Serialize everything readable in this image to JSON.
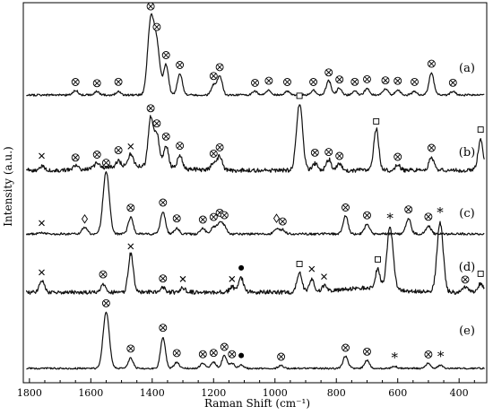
{
  "chart_data": {
    "type": "line",
    "title": "",
    "xlabel": "Raman Shift (cm⁻¹)",
    "ylabel": "Intensity (a.u.)",
    "xlim": [
      1820,
      310
    ],
    "x_reversed": true,
    "x_ticks": [
      1800,
      1600,
      1400,
      1200,
      1000,
      800,
      600,
      400
    ],
    "y_ticks_shown": false,
    "grid": false,
    "legend": "none",
    "series": [
      {
        "name": "(a)",
        "peaks": [
          [
            1650,
            4
          ],
          [
            1580,
            3
          ],
          [
            1510,
            3
          ],
          [
            1405,
            60
          ],
          [
            1385,
            40
          ],
          [
            1355,
            25
          ],
          [
            1310,
            18
          ],
          [
            1200,
            8
          ],
          [
            1180,
            16
          ],
          [
            1065,
            3
          ],
          [
            1020,
            4
          ],
          [
            960,
            3
          ],
          [
            875,
            4
          ],
          [
            825,
            12
          ],
          [
            790,
            6
          ],
          [
            740,
            3
          ],
          [
            700,
            5
          ],
          [
            640,
            5
          ],
          [
            600,
            4
          ],
          [
            545,
            3
          ],
          [
            490,
            18
          ],
          [
            420,
            3
          ]
        ],
        "markers": [
          [
            1405,
            "otimes"
          ],
          [
            1385,
            "otimes"
          ],
          [
            1355,
            "otimes"
          ],
          [
            1310,
            "otimes"
          ],
          [
            1200,
            "otimes"
          ],
          [
            1180,
            "otimes"
          ],
          [
            1650,
            "otimes"
          ],
          [
            1580,
            "otimes"
          ],
          [
            1510,
            "otimes"
          ],
          [
            1065,
            "otimes"
          ],
          [
            1020,
            "otimes"
          ],
          [
            960,
            "otimes"
          ],
          [
            875,
            "otimes"
          ],
          [
            825,
            "otimes"
          ],
          [
            790,
            "otimes"
          ],
          [
            740,
            "otimes"
          ],
          [
            700,
            "otimes"
          ],
          [
            640,
            "otimes"
          ],
          [
            600,
            "otimes"
          ],
          [
            545,
            "otimes"
          ],
          [
            490,
            "otimes"
          ],
          [
            420,
            "otimes"
          ]
        ]
      },
      {
        "name": "(b)",
        "peaks": [
          [
            1760,
            3
          ],
          [
            1650,
            3
          ],
          [
            1580,
            4
          ],
          [
            1510,
            4
          ],
          [
            1470,
            9
          ],
          [
            1405,
            35
          ],
          [
            1385,
            24
          ],
          [
            1355,
            16
          ],
          [
            1310,
            10
          ],
          [
            1200,
            5
          ],
          [
            1180,
            10
          ],
          [
            920,
            48
          ],
          [
            870,
            5
          ],
          [
            825,
            8
          ],
          [
            790,
            5
          ],
          [
            670,
            30
          ],
          [
            600,
            4
          ],
          [
            490,
            9
          ],
          [
            330,
            22
          ]
        ],
        "markers": [
          [
            1760,
            "x"
          ],
          [
            1650,
            "otimes"
          ],
          [
            1580,
            "otimes"
          ],
          [
            1510,
            "otimes"
          ],
          [
            1470,
            "x"
          ],
          [
            1405,
            "otimes"
          ],
          [
            1385,
            "otimes"
          ],
          [
            1355,
            "otimes"
          ],
          [
            1310,
            "otimes"
          ],
          [
            1200,
            "otimes"
          ],
          [
            1180,
            "otimes"
          ],
          [
            920,
            "square"
          ],
          [
            870,
            "otimes"
          ],
          [
            825,
            "otimes"
          ],
          [
            790,
            "otimes"
          ],
          [
            670,
            "square"
          ],
          [
            600,
            "otimes"
          ],
          [
            490,
            "otimes"
          ],
          [
            330,
            "square"
          ]
        ]
      },
      {
        "name": "(c)",
        "peaks": [
          [
            1760,
            1
          ],
          [
            1620,
            5
          ],
          [
            1550,
            45
          ],
          [
            1470,
            12
          ],
          [
            1365,
            16
          ],
          [
            1320,
            4
          ],
          [
            1235,
            4
          ],
          [
            1200,
            5
          ],
          [
            1180,
            8
          ],
          [
            1165,
            5
          ],
          [
            995,
            4
          ],
          [
            975,
            3
          ],
          [
            770,
            13
          ],
          [
            700,
            7
          ],
          [
            565,
            11
          ],
          [
            500,
            6
          ]
        ],
        "markers": [
          [
            1760,
            "x"
          ],
          [
            1620,
            "diamond"
          ],
          [
            1550,
            "otimes"
          ],
          [
            1470,
            "otimes"
          ],
          [
            1365,
            "otimes"
          ],
          [
            1320,
            "otimes"
          ],
          [
            1235,
            "otimes"
          ],
          [
            1200,
            "otimes"
          ],
          [
            1180,
            "otimes"
          ],
          [
            1165,
            "otimes"
          ],
          [
            995,
            "diamond"
          ],
          [
            975,
            "otimes"
          ],
          [
            770,
            "otimes"
          ],
          [
            700,
            "otimes"
          ],
          [
            565,
            "otimes"
          ],
          [
            500,
            "otimes"
          ]
        ]
      },
      {
        "name": "(d)",
        "peaks": [
          [
            1760,
            9
          ],
          [
            1560,
            5
          ],
          [
            1470,
            28
          ],
          [
            1365,
            3
          ],
          [
            1300,
            3
          ],
          [
            1140,
            4
          ],
          [
            1110,
            10
          ],
          [
            920,
            14
          ],
          [
            880,
            9
          ],
          [
            840,
            4
          ],
          [
            665,
            14
          ],
          [
            625,
            45
          ],
          [
            462,
            50
          ],
          [
            380,
            4
          ],
          [
            330,
            6
          ]
        ],
        "markers": [
          [
            1760,
            "x"
          ],
          [
            1560,
            "otimes"
          ],
          [
            1470,
            "x"
          ],
          [
            1365,
            "otimes"
          ],
          [
            1300,
            "x"
          ],
          [
            1140,
            "x"
          ],
          [
            1110,
            "dot"
          ],
          [
            920,
            "square"
          ],
          [
            880,
            "x"
          ],
          [
            840,
            "x"
          ],
          [
            665,
            "square"
          ],
          [
            625,
            "star"
          ],
          [
            462,
            "star"
          ],
          [
            380,
            "otimes"
          ],
          [
            330,
            "square"
          ]
        ]
      },
      {
        "name": "(e)",
        "peaks": [
          [
            1550,
            55
          ],
          [
            1470,
            10
          ],
          [
            1365,
            30
          ],
          [
            1320,
            6
          ],
          [
            1235,
            5
          ],
          [
            1200,
            6
          ],
          [
            1165,
            12
          ],
          [
            1140,
            5
          ],
          [
            1110,
            3
          ],
          [
            980,
            3
          ],
          [
            770,
            12
          ],
          [
            700,
            8
          ],
          [
            610,
            2
          ],
          [
            500,
            5
          ],
          [
            460,
            3
          ]
        ],
        "markers": [
          [
            1550,
            "otimes"
          ],
          [
            1470,
            "otimes"
          ],
          [
            1365,
            "otimes"
          ],
          [
            1320,
            "otimes"
          ],
          [
            1235,
            "otimes"
          ],
          [
            1200,
            "otimes"
          ],
          [
            1165,
            "otimes"
          ],
          [
            1140,
            "otimes"
          ],
          [
            1110,
            "dot"
          ],
          [
            980,
            "otimes"
          ],
          [
            770,
            "otimes"
          ],
          [
            700,
            "otimes"
          ],
          [
            610,
            "star"
          ],
          [
            500,
            "otimes"
          ],
          [
            460,
            "star"
          ]
        ]
      }
    ]
  }
}
